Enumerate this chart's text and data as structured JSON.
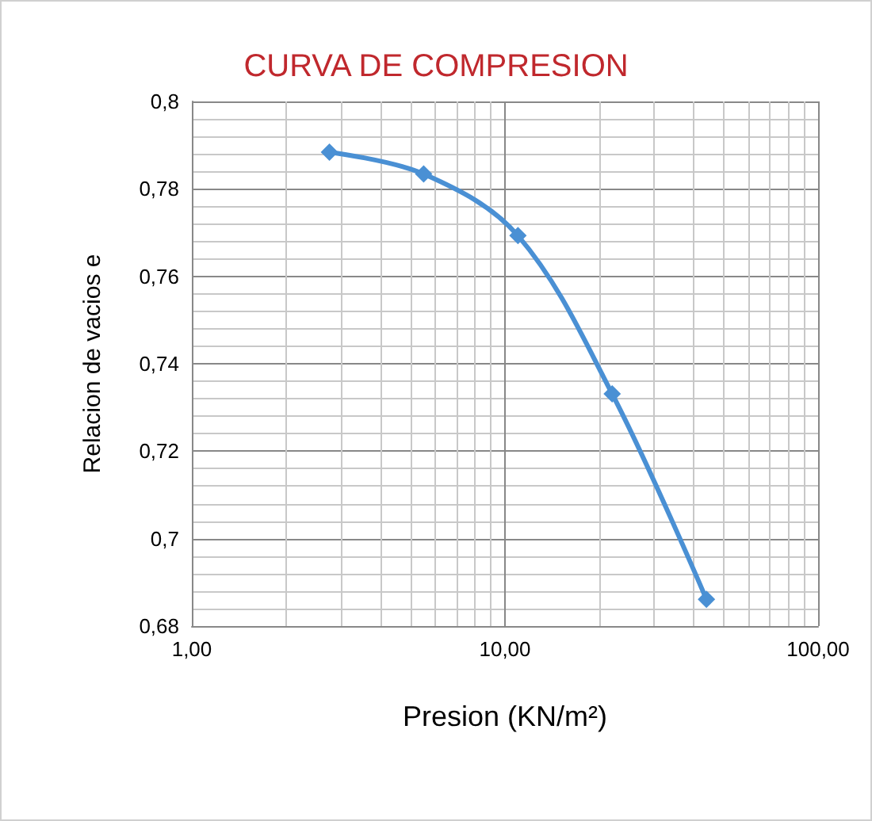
{
  "chart_data": {
    "type": "line",
    "title": "CURVA DE COMPRESION",
    "xlabel": "Presion (KN/m²)",
    "ylabel": "Relacion de vacios e",
    "x": [
      2.75,
      5.5,
      11,
      22,
      44
    ],
    "series": [
      {
        "color": "#4a90d4",
        "values": [
          0.7884,
          0.7834,
          0.7693,
          0.7331,
          0.6861
        ]
      }
    ],
    "log": "x",
    "xlim": [
      1,
      100
    ],
    "xticks": [
      {
        "value": 1,
        "label": "1,00"
      },
      {
        "value": 10,
        "label": "10,00"
      },
      {
        "value": 100,
        "label": "100,00"
      }
    ],
    "ylim": [
      0.68,
      0.8
    ],
    "yticks": [
      {
        "value": 0.68,
        "label": "0,68"
      },
      {
        "value": 0.7,
        "label": "0,7"
      },
      {
        "value": 0.72,
        "label": "0,72"
      },
      {
        "value": 0.74,
        "label": "0,74"
      },
      {
        "value": 0.76,
        "label": "0,76"
      },
      {
        "value": 0.78,
        "label": "0,78"
      },
      {
        "value": 0.8,
        "label": "0,8"
      }
    ],
    "grid": true,
    "marker": "diamond",
    "line_style": "solid"
  }
}
